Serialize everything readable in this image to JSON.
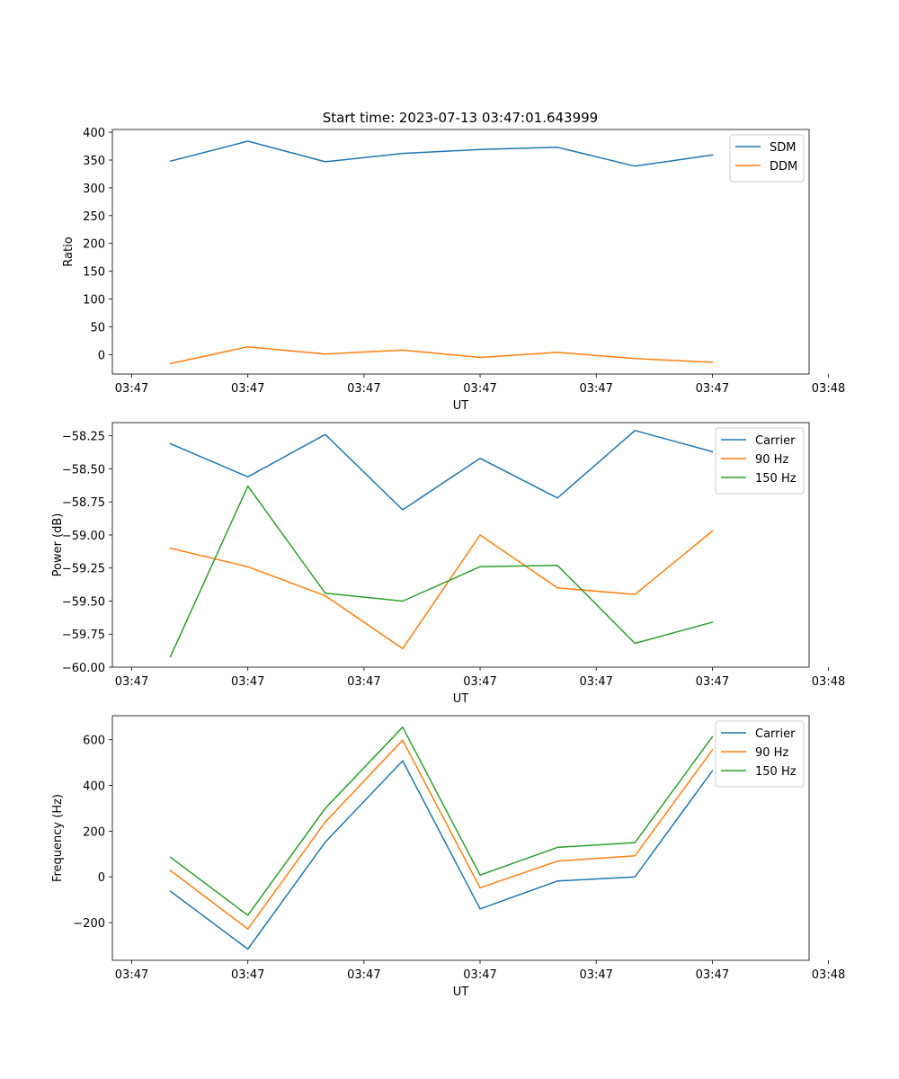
{
  "figure_title": "Start time: 2023-07-13 03:47:01.643999",
  "colors": {
    "blue": "#1f77b4",
    "orange": "#ff7f0e",
    "green": "#2ca02c"
  },
  "chart_data": [
    {
      "type": "line",
      "title": "Start time: 2023-07-13 03:47:01.643999",
      "xlabel": "UT",
      "ylabel": "Ratio",
      "x": [
        1,
        2,
        3,
        4,
        5,
        6,
        7,
        8
      ],
      "xlim": [
        0.25,
        9.25
      ],
      "x_ticks": [
        0.5,
        2,
        3.5,
        5,
        6.5,
        8,
        9.5
      ],
      "x_tick_labels": [
        "03:47",
        "03:47",
        "03:47",
        "03:47",
        "03:47",
        "03:47",
        "03:48"
      ],
      "ylim": [
        -35,
        405
      ],
      "y_ticks": [
        0,
        50,
        100,
        150,
        200,
        250,
        300,
        350,
        400
      ],
      "y_tick_labels": [
        "0",
        "50",
        "100",
        "150",
        "200",
        "250",
        "300",
        "350",
        "400"
      ],
      "legend": "top-right",
      "series": [
        {
          "name": "SDM",
          "color": "#1f77b4",
          "values": [
            348,
            384,
            347,
            362,
            369,
            373,
            339,
            359
          ]
        },
        {
          "name": "DDM",
          "color": "#ff7f0e",
          "values": [
            -16,
            14,
            1,
            8,
            -5,
            4,
            -7,
            -14
          ]
        }
      ]
    },
    {
      "type": "line",
      "title": "",
      "xlabel": "UT",
      "ylabel": "Power (dB)",
      "x": [
        1,
        2,
        3,
        4,
        5,
        6,
        7,
        8
      ],
      "xlim": [
        0.25,
        9.25
      ],
      "x_ticks": [
        0.5,
        2,
        3.5,
        5,
        6.5,
        8,
        9.5
      ],
      "x_tick_labels": [
        "03:47",
        "03:47",
        "03:47",
        "03:47",
        "03:47",
        "03:47",
        "03:48"
      ],
      "ylim": [
        -60.0,
        -58.15
      ],
      "y_ticks": [
        -60.0,
        -59.75,
        -59.5,
        -59.25,
        -59.0,
        -58.75,
        -58.5,
        -58.25
      ],
      "y_tick_labels": [
        "−60.00",
        "−59.75",
        "−59.50",
        "−59.25",
        "−59.00",
        "−58.75",
        "−58.50",
        "−58.25"
      ],
      "legend": "top-right",
      "series": [
        {
          "name": "Carrier",
          "color": "#1f77b4",
          "values": [
            -58.31,
            -58.56,
            -58.24,
            -58.81,
            -58.42,
            -58.72,
            -58.21,
            -58.37
          ]
        },
        {
          "name": "90 Hz",
          "color": "#ff7f0e",
          "values": [
            -59.1,
            -59.24,
            -59.46,
            -59.86,
            -59.0,
            -59.4,
            -59.45,
            -58.97
          ]
        },
        {
          "name": "150 Hz",
          "color": "#2ca02c",
          "values": [
            -59.92,
            -58.63,
            -59.44,
            -59.5,
            -59.24,
            -59.23,
            -59.82,
            -59.66
          ]
        }
      ]
    },
    {
      "type": "line",
      "title": "",
      "xlabel": "UT",
      "ylabel": "Frequency (Hz)",
      "x": [
        1,
        2,
        3,
        4,
        5,
        6,
        7,
        8
      ],
      "xlim": [
        0.25,
        9.25
      ],
      "x_ticks": [
        0.5,
        2,
        3.5,
        5,
        6.5,
        8,
        9.5
      ],
      "x_tick_labels": [
        "03:47",
        "03:47",
        "03:47",
        "03:47",
        "03:47",
        "03:47",
        "03:48"
      ],
      "ylim": [
        -365,
        705
      ],
      "y_ticks": [
        -200,
        0,
        200,
        400,
        600
      ],
      "y_tick_labels": [
        "−200",
        "0",
        "200",
        "400",
        "600"
      ],
      "legend": "top-right",
      "series": [
        {
          "name": "Carrier",
          "color": "#1f77b4",
          "values": [
            -63,
            -316,
            152,
            508,
            -140,
            -18,
            0,
            464
          ]
        },
        {
          "name": "90 Hz",
          "color": "#ff7f0e",
          "values": [
            28,
            -228,
            240,
            598,
            -48,
            69,
            92,
            555
          ]
        },
        {
          "name": "150 Hz",
          "color": "#2ca02c",
          "values": [
            86,
            -168,
            300,
            655,
            8,
            129,
            150,
            613
          ]
        }
      ]
    }
  ]
}
